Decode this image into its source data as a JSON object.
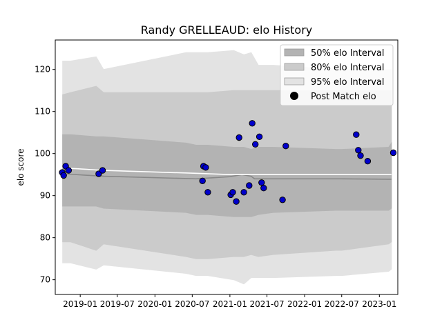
{
  "chart_data": {
    "type": "scatter",
    "title": "Randy GRELLEAUD: elo History",
    "xlabel": "",
    "ylabel": "elo score",
    "xlim": [
      "2018-09-01",
      "2023-04-01"
    ],
    "ylim": [
      66.5,
      127.0
    ],
    "x_ticks": [
      "2019-01",
      "2019-07",
      "2020-01",
      "2020-07",
      "2021-01",
      "2021-07",
      "2022-01",
      "2022-07",
      "2023-01"
    ],
    "y_ticks": [
      70,
      80,
      90,
      100,
      110,
      120
    ],
    "grid": false,
    "legend_position": "top-right",
    "colors": {
      "band_95": "#e3e3e3",
      "band_80": "#cbcbcb",
      "band_50": "#b3b3b3",
      "mean_line": "#888888",
      "white_line": "#ffffff",
      "points": "#0000cc",
      "point_edge": "#000000"
    },
    "legend": [
      {
        "label": "50% elo Interval",
        "kind": "band_50"
      },
      {
        "label": "80% elo Interval",
        "kind": "band_80"
      },
      {
        "label": "95% elo Interval",
        "kind": "band_95"
      },
      {
        "label": "Post Match elo",
        "kind": "points"
      }
    ],
    "series": [
      {
        "kind": "band_95",
        "x": [
          "2018-10-07",
          "2018-11-15",
          "2019-03-20",
          "2019-04-25",
          "2020-06-01",
          "2020-07-20",
          "2020-09-15",
          "2021-01-20",
          "2021-03-10",
          "2021-04-15",
          "2021-05-20",
          "2021-08-01",
          "2022-06-01",
          "2022-07-01",
          "2023-02-15",
          "2023-03-01"
        ],
        "upper": [
          122.0,
          122.0,
          123.0,
          120.0,
          124.0,
          124.0,
          124.0,
          124.5,
          123.5,
          124.0,
          121.0,
          121.0,
          120.0,
          120.0,
          120.0,
          120.0
        ],
        "lower": [
          74.0,
          74.0,
          72.5,
          73.5,
          71.5,
          71.0,
          71.0,
          70.0,
          69.0,
          70.5,
          70.5,
          70.5,
          71.0,
          71.0,
          72.0,
          72.5
        ]
      },
      {
        "kind": "band_80",
        "x": [
          "2018-10-07",
          "2018-11-15",
          "2019-03-20",
          "2019-04-25",
          "2020-06-01",
          "2020-07-20",
          "2020-09-15",
          "2021-01-20",
          "2021-03-10",
          "2021-04-15",
          "2021-05-20",
          "2021-08-01",
          "2022-06-01",
          "2022-07-01",
          "2023-02-15",
          "2023-03-01"
        ],
        "upper": [
          114.0,
          114.5,
          116.0,
          114.5,
          114.5,
          114.5,
          114.5,
          115.0,
          115.0,
          115.0,
          115.0,
          115.0,
          115.0,
          115.0,
          115.0,
          115.0
        ],
        "lower": [
          79.0,
          79.0,
          77.0,
          78.5,
          75.5,
          75.0,
          75.0,
          75.5,
          75.5,
          76.0,
          75.5,
          76.0,
          77.0,
          77.0,
          78.5,
          79.0
        ]
      },
      {
        "kind": "band_50",
        "x": [
          "2018-10-07",
          "2018-11-15",
          "2019-03-20",
          "2019-04-25",
          "2020-06-01",
          "2020-07-20",
          "2020-09-15",
          "2021-01-20",
          "2021-03-10",
          "2021-04-15",
          "2021-05-20",
          "2021-08-01",
          "2022-06-01",
          "2022-07-01",
          "2023-02-15",
          "2023-03-01"
        ],
        "upper": [
          104.5,
          104.5,
          104.0,
          104.0,
          102.5,
          102.0,
          102.0,
          101.5,
          101.5,
          101.0,
          101.5,
          101.5,
          101.0,
          101.0,
          101.5,
          102.5
        ],
        "lower": [
          87.5,
          87.5,
          87.5,
          87.0,
          86.0,
          85.5,
          85.5,
          85.0,
          85.0,
          85.0,
          85.5,
          86.0,
          86.5,
          86.5,
          86.5,
          87.0
        ]
      },
      {
        "kind": "mean_line",
        "x": [
          "2018-10-07",
          "2019-04-25",
          "2020-07-20",
          "2021-01-01",
          "2021-03-01",
          "2021-04-15",
          "2021-05-01",
          "2021-08-01",
          "2022-07-01",
          "2023-03-01"
        ],
        "y": [
          95.2,
          94.6,
          94.0,
          94.5,
          95.0,
          94.6,
          94.0,
          94.0,
          94.0,
          93.9
        ]
      },
      {
        "kind": "white_line",
        "x": [
          "2018-10-07",
          "2019-04-25",
          "2020-07-20",
          "2021-01-01",
          "2021-04-15",
          "2021-08-01",
          "2022-07-01",
          "2023-03-01"
        ],
        "y": [
          96.6,
          96.0,
          95.3,
          95.0,
          95.0,
          95.0,
          95.0,
          95.0
        ]
      },
      {
        "kind": "points",
        "x": [
          "2018-10-05",
          "2018-10-12",
          "2018-10-22",
          "2018-11-05",
          "2019-04-01",
          "2019-04-20",
          "2020-08-20",
          "2020-08-25",
          "2020-09-05",
          "2020-09-15",
          "2021-01-05",
          "2021-01-15",
          "2021-02-01",
          "2021-02-15",
          "2021-03-10",
          "2021-04-05",
          "2021-04-20",
          "2021-05-05",
          "2021-05-25",
          "2021-06-05",
          "2021-06-15",
          "2021-09-15",
          "2021-10-01",
          "2022-09-10",
          "2022-09-20",
          "2022-10-01",
          "2022-11-05",
          "2023-03-10"
        ],
        "y": [
          95.5,
          94.8,
          97.0,
          96.0,
          95.2,
          96.0,
          93.5,
          97.0,
          96.7,
          90.8,
          90.2,
          90.8,
          88.6,
          103.8,
          90.8,
          92.4,
          107.2,
          102.2,
          104.0,
          93.1,
          91.8,
          89.0,
          101.8,
          104.5,
          100.8,
          99.5,
          98.2,
          100.2
        ]
      }
    ]
  }
}
